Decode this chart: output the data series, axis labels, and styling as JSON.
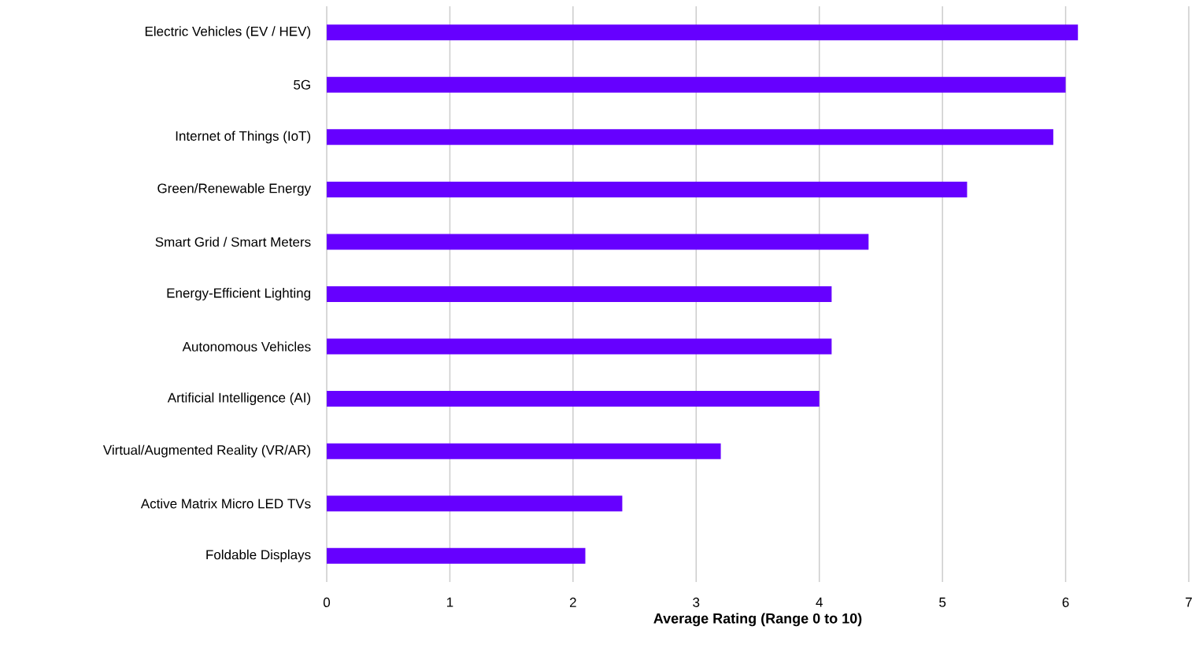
{
  "chart_data": {
    "type": "bar",
    "orientation": "horizontal",
    "categories": [
      "Electric Vehicles (EV / HEV)",
      "5G",
      "Internet of Things (IoT)",
      "Green/Renewable Energy",
      "Smart Grid / Smart Meters",
      "Energy-Efficient Lighting",
      "Autonomous Vehicles",
      "Artificial Intelligence (AI)",
      "Virtual/Augmented Reality (VR/AR)",
      "Active Matrix Micro LED TVs",
      "Foldable Displays"
    ],
    "values": [
      6.1,
      6.0,
      5.9,
      5.2,
      4.4,
      4.1,
      4.1,
      4.0,
      3.2,
      2.4,
      2.1
    ],
    "color": "#6600ff",
    "xlabel": "Average Rating (Range 0 to 10)",
    "xlim": [
      0,
      7
    ],
    "xticks": [
      0,
      1,
      2,
      3,
      4,
      5,
      6,
      7
    ],
    "grid": "x"
  }
}
